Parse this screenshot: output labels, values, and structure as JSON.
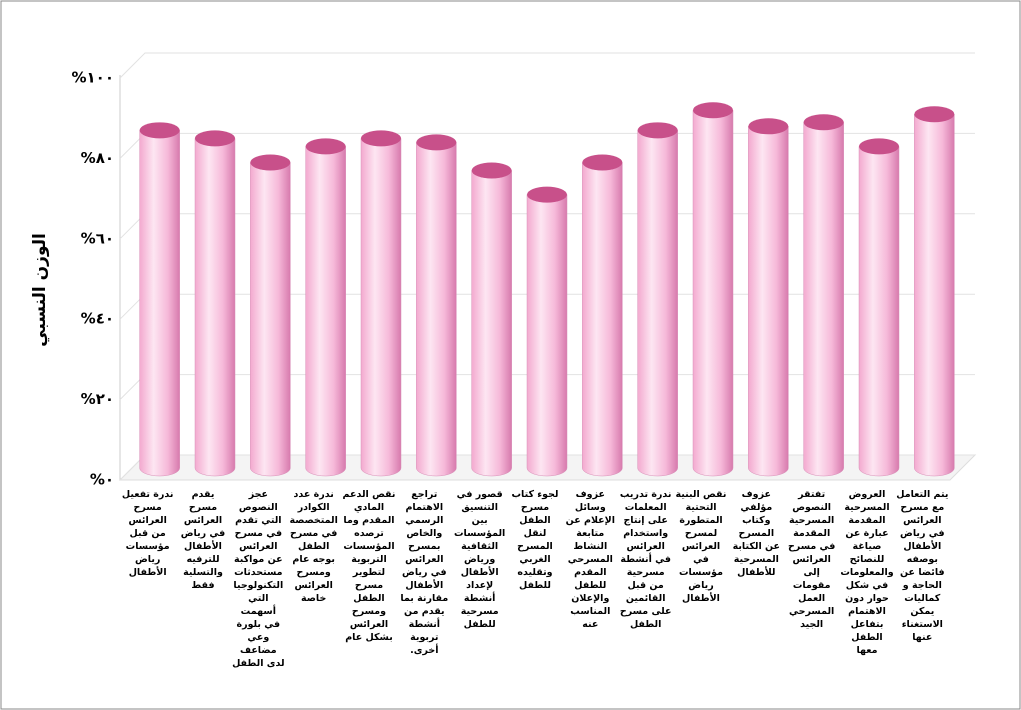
{
  "chart_data": {
    "type": "bar3d",
    "y_label": "الوزن النسبي",
    "categories": [
      "ندرة تفعيل مسرح العرائس من قبل مؤسسات رياض الأطفال",
      "يقدم مسرح العرائس في رياض الأطفال للترفيه والتسلية فقط",
      "عجز النصوص التي تقدم في مسرح العرائس عن مواكبة مستحدثات التكنولوجيا التي أسهمت في بلورة وعي مضاعف لدى الطفل",
      "ندرة عدد الكوادر المتخصصة في مسرح الطفل بوجه عام ومسرح العرائس خاصة",
      "نقص الدعم المادي المقدم وما ترصده المؤسسات التربوية لتطوير مسرح الطفل ومسرح العرائس بشكل عام",
      "تراجع الاهتمام الرسمي والخاص بمسرح العرائس في رياض الأطفال مقارنة بما يقدم من أنشطة تربوية أخرى.",
      "قصور في التنسيق بين المؤسسات الثقافية ورياض الأطفال لإعداد أنشطة مسرحية للطفل",
      "لجوء كتاب مسرح الطفل لنقل المسرح الغربي وتقليده للطفل",
      "عزوف وسائل الإعلام عن متابعة النشاط المسرحي المقدم للطفل والإعلان المناسب عنه",
      "ندرة تدريب المعلمات على إنتاج واستخدام العرائس في أنشطة مسرحية من قبل القائمين على مسرح الطفل",
      "نقص البنية التحتية المتطورة لمسرح العرائس في مؤسسات رياض الأطفال",
      "عزوف مؤلفي وكتاب المسرح عن الكتابة المسرحية للأطفال",
      "تفتقر النصوص المسرحية المقدمة في مسرح العرائس إلى مقومات العمل المسرحي الجيد",
      "العروض المسرحية المقدمة عبارة عن صياغة للنصائح والمعلومات في شكل حوار دون الاهتمام بتفاعل الطفل معها",
      "يتم التعامل مع مسرح العرائس في رياض الأطفال بوصفه فائضا عن الحاجة و كماليات يمكن الاستغناء عنها"
    ],
    "values": [
      84,
      82,
      76,
      80,
      82,
      81,
      74,
      68,
      76,
      84,
      89,
      85,
      86,
      80,
      88
    ],
    "color": "#f7b8d8",
    "ylim": [
      0,
      100
    ],
    "yticks": [
      {
        "value": 0,
        "label": "%٠"
      },
      {
        "value": 20,
        "label": "%٢٠"
      },
      {
        "value": 40,
        "label": "%٤٠"
      },
      {
        "value": 60,
        "label": "%٦٠"
      },
      {
        "value": 80,
        "label": "%٨٠"
      },
      {
        "value": 100,
        "label": "%١٠٠"
      }
    ],
    "grid": true
  }
}
